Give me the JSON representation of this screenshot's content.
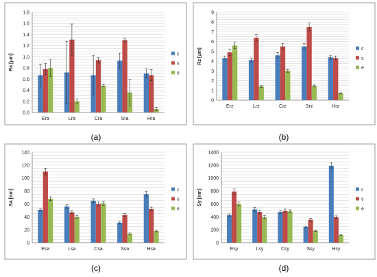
{
  "colors": {
    "c": "#4a7ebb",
    "s": "#be4b48",
    "e": "#98b954"
  },
  "chart_data": [
    {
      "type": "bar",
      "caption": "(a)",
      "ylabel": "Ra [µm]",
      "ylim": [
        0,
        1.8
      ],
      "ystep": 0.2,
      "yticks": [
        "0.0",
        "0.2",
        "0.4",
        "0.6",
        "0.8",
        "1.0",
        "1.2",
        "1.4",
        "1.6",
        "1.8"
      ],
      "categories": [
        "Era",
        "Lra",
        "Cra",
        "Sra",
        "Hra"
      ],
      "legend": "right",
      "series": [
        {
          "name": "c",
          "values": [
            0.67,
            0.72,
            0.67,
            0.93,
            0.7
          ],
          "errors": [
            0.2,
            0.56,
            0.36,
            0.14,
            0.08
          ]
        },
        {
          "name": "s",
          "values": [
            0.78,
            1.31,
            0.94,
            1.3,
            0.67
          ],
          "errors": [
            0.1,
            0.28,
            0.05,
            0.03,
            0.1
          ]
        },
        {
          "name": "e",
          "values": [
            0.8,
            0.2,
            0.48,
            0.36,
            0.06
          ],
          "errors": [
            0.15,
            0.04,
            0.02,
            0.24,
            0.03
          ]
        }
      ]
    },
    {
      "type": "bar",
      "caption": "(b)",
      "ylabel": "Rz [µm]",
      "ylim": [
        0,
        9
      ],
      "ystep": 1,
      "yticks": [
        "0",
        "1",
        "2",
        "3",
        "4",
        "5",
        "6",
        "7",
        "8",
        "9"
      ],
      "categories": [
        "Erz",
        "Lrz",
        "Crz",
        "Srz",
        "Hrz"
      ],
      "legend": "right",
      "series": [
        {
          "name": "c",
          "values": [
            4.3,
            4.1,
            4.6,
            5.5,
            4.4
          ],
          "errors": [
            0.2,
            0.2,
            0.3,
            0.3,
            0.2
          ]
        },
        {
          "name": "s",
          "values": [
            4.9,
            6.4,
            5.5,
            7.5,
            4.3
          ],
          "errors": [
            0.3,
            0.3,
            0.3,
            0.4,
            0.2
          ]
        },
        {
          "name": "e",
          "values": [
            5.6,
            1.4,
            3.0,
            1.45,
            0.7
          ],
          "errors": [
            0.3,
            0.1,
            0.15,
            0.1,
            0.05
          ]
        }
      ]
    },
    {
      "type": "bar",
      "caption": "(c)",
      "ylabel": "Sa [nm]",
      "ylim": [
        0,
        140
      ],
      "ystep": 20,
      "yticks": [
        "0",
        "20",
        "40",
        "60",
        "80",
        "100",
        "120",
        "140"
      ],
      "categories": [
        "Esa",
        "Lsa",
        "Csa",
        "Ssa",
        "Hsa"
      ],
      "legend": "right",
      "series": [
        {
          "name": "c",
          "values": [
            51,
            56,
            65,
            31,
            75
          ],
          "errors": [
            2,
            3,
            3,
            2,
            4
          ]
        },
        {
          "name": "s",
          "values": [
            110,
            47,
            60,
            43,
            52
          ],
          "errors": [
            5,
            2,
            3,
            2,
            3
          ]
        },
        {
          "name": "e",
          "values": [
            68,
            40,
            61,
            14,
            18
          ],
          "errors": [
            3,
            2,
            3,
            1,
            1
          ]
        }
      ]
    },
    {
      "type": "bar",
      "caption": "(d)",
      "ylabel": "Sy [nm]",
      "ylim": [
        0,
        1400
      ],
      "ystep": 200,
      "yticks": [
        "0",
        "200",
        "400",
        "600",
        "800",
        "1000",
        "1200",
        "1400"
      ],
      "categories": [
        "Esy",
        "Lsy",
        "Csy",
        "Ssy",
        "Hsy"
      ],
      "legend": "right",
      "series": [
        {
          "name": "c",
          "values": [
            425,
            515,
            475,
            245,
            1190
          ],
          "errors": [
            20,
            30,
            25,
            10,
            50
          ]
        },
        {
          "name": "s",
          "values": [
            790,
            475,
            490,
            355,
            395
          ],
          "errors": [
            40,
            25,
            30,
            20,
            20
          ]
        },
        {
          "name": "e",
          "values": [
            600,
            395,
            485,
            185,
            120
          ],
          "errors": [
            30,
            25,
            25,
            10,
            5
          ]
        }
      ]
    }
  ]
}
